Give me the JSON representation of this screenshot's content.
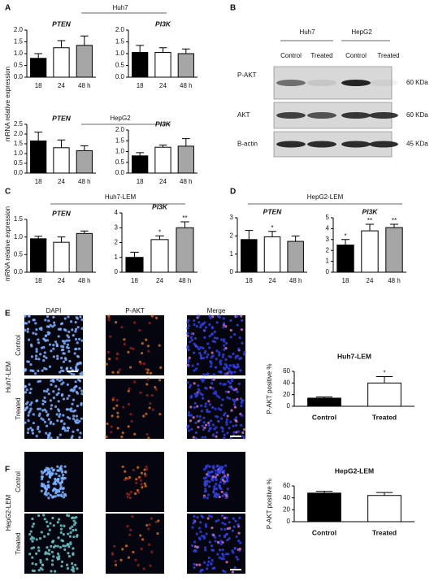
{
  "panel_labels": [
    "A",
    "B",
    "C",
    "D",
    "E",
    "F"
  ],
  "group_labels": [
    "Huh7",
    "HepG2",
    "Huh7-LEM",
    "HepG2-LEM"
  ],
  "ylabel": "mRNA relative expression",
  "blot": {
    "cell_lines": [
      "Huh7",
      "HepG2"
    ],
    "conditions": [
      "Control",
      "Treated",
      "Control",
      "Treated"
    ],
    "rows": [
      {
        "name": "P-AKT",
        "size": "60 KDa"
      },
      {
        "name": "AKT",
        "size": "60 KDa"
      },
      {
        "name": "B-actin",
        "size": "45 KDa"
      }
    ]
  },
  "imaging": {
    "columns": [
      "DAPI",
      "P-AKT",
      "Merge"
    ],
    "panels": [
      {
        "cell_line": "Huh7-LEM",
        "rows": [
          "Control",
          "Treated"
        ]
      },
      {
        "cell_line": "HepG2-LEM",
        "rows": [
          "Control",
          "Treated"
        ]
      }
    ]
  },
  "chart_data": [
    {
      "type": "bar",
      "title": "PTEN",
      "categories": [
        "18",
        "24",
        "48 h"
      ],
      "values": [
        0.8,
        1.25,
        1.35
      ],
      "errors": [
        0.2,
        0.3,
        0.4
      ],
      "colors": [
        "#000000",
        "#ffffff",
        "#a6a6a6"
      ],
      "annotations": [
        null,
        null,
        null
      ],
      "ylim": [
        0,
        2
      ],
      "yticks": [
        {
          "value": 0,
          "label": "0.0"
        },
        {
          "value": 0.5,
          "label": "0.5"
        },
        {
          "value": 1,
          "label": "1.0"
        },
        {
          "value": 1.5,
          "label": "1.5"
        },
        {
          "value": 2,
          "label": "2.0"
        }
      ]
    },
    {
      "type": "bar",
      "title": "PI3K",
      "categories": [
        "18",
        "24",
        "48 h"
      ],
      "values": [
        1.05,
        1.05,
        1.0
      ],
      "errors": [
        0.3,
        0.2,
        0.2
      ],
      "colors": [
        "#000000",
        "#ffffff",
        "#a6a6a6"
      ],
      "annotations": [
        null,
        null,
        null
      ],
      "ylim": [
        0,
        2
      ],
      "yticks": [
        {
          "value": 0,
          "label": "0.0"
        },
        {
          "value": 0.5,
          "label": "0.5"
        },
        {
          "value": 1,
          "label": "1.0"
        },
        {
          "value": 1.5,
          "label": "1.5"
        },
        {
          "value": 2,
          "label": "2.0"
        }
      ]
    },
    {
      "type": "bar",
      "title": "PTEN",
      "categories": [
        "18",
        "24",
        "48 h"
      ],
      "values": [
        1.65,
        1.3,
        1.15
      ],
      "errors": [
        0.45,
        0.4,
        0.25
      ],
      "colors": [
        "#000000",
        "#ffffff",
        "#a6a6a6"
      ],
      "annotations": [
        null,
        null,
        null
      ],
      "ylim": [
        0,
        2.5
      ],
      "yticks": [
        {
          "value": 0,
          "label": "0.0"
        },
        {
          "value": 0.5,
          "label": "0.5"
        },
        {
          "value": 1,
          "label": "1.0"
        },
        {
          "value": 1.5,
          "label": "1.5"
        },
        {
          "value": 2,
          "label": "2.0"
        },
        {
          "value": 2.5,
          "label": "2.5"
        }
      ]
    },
    {
      "type": "bar",
      "title": "PI3K",
      "categories": [
        "18",
        "24",
        "48 h"
      ],
      "values": [
        0.8,
        1.2,
        1.25
      ],
      "errors": [
        0.15,
        0.1,
        0.35
      ],
      "colors": [
        "#000000",
        "#ffffff",
        "#a6a6a6"
      ],
      "annotations": [
        null,
        null,
        null
      ],
      "ylim": [
        0,
        2
      ],
      "yticks": [
        {
          "value": 0,
          "label": "0.0"
        },
        {
          "value": 0.5,
          "label": "0.5"
        },
        {
          "value": 1,
          "label": "1.0"
        },
        {
          "value": 1.5,
          "label": "1.5"
        },
        {
          "value": 2,
          "label": "2.0"
        }
      ]
    },
    {
      "type": "bar",
      "title": "PTEN",
      "categories": [
        "18",
        "24",
        "48 h"
      ],
      "values": [
        0.95,
        0.85,
        1.1
      ],
      "errors": [
        0.07,
        0.15,
        0.07
      ],
      "colors": [
        "#000000",
        "#ffffff",
        "#a6a6a6"
      ],
      "annotations": [
        null,
        null,
        null
      ],
      "ylim": [
        0,
        1.5
      ],
      "yticks": [
        {
          "value": 0,
          "label": "0.0"
        },
        {
          "value": 0.5,
          "label": "0.5"
        },
        {
          "value": 1,
          "label": "1.0"
        },
        {
          "value": 1.5,
          "label": "1.5"
        }
      ]
    },
    {
      "type": "bar",
      "title": "PI3K",
      "categories": [
        "18",
        "24",
        "48 h"
      ],
      "values": [
        1.0,
        2.2,
        3.0
      ],
      "errors": [
        0.35,
        0.25,
        0.4
      ],
      "colors": [
        "#000000",
        "#ffffff",
        "#a6a6a6"
      ],
      "annotations": [
        null,
        "*",
        "**"
      ],
      "ylim": [
        0,
        4
      ],
      "yticks": [
        0,
        1,
        2,
        3,
        4
      ]
    },
    {
      "type": "bar",
      "title": "PTEN",
      "categories": [
        "18",
        "24",
        "48 h"
      ],
      "values": [
        1.8,
        1.95,
        1.7
      ],
      "errors": [
        0.5,
        0.3,
        0.3
      ],
      "colors": [
        "#000000",
        "#ffffff",
        "#a6a6a6"
      ],
      "annotations": [
        null,
        "*",
        null
      ],
      "ylim": [
        0,
        3
      ],
      "yticks": [
        0,
        1,
        2,
        3
      ]
    },
    {
      "type": "bar",
      "title": "PI3K",
      "categories": [
        "18",
        "24",
        "48 h"
      ],
      "values": [
        2.5,
        3.8,
        4.1
      ],
      "errors": [
        0.5,
        0.6,
        0.3
      ],
      "colors": [
        "#000000",
        "#ffffff",
        "#a6a6a6"
      ],
      "annotations": [
        "*",
        "**",
        "**"
      ],
      "ylim": [
        0,
        5
      ],
      "yticks": [
        0,
        1,
        2,
        3,
        4,
        5
      ]
    },
    {
      "type": "bar",
      "title": "Huh7-LEM",
      "ylabel": "P-AKT positive %",
      "categories": [
        "Control",
        "Treated"
      ],
      "values": [
        14,
        40
      ],
      "errors": [
        2,
        11
      ],
      "colors": [
        "#000000",
        "#ffffff"
      ],
      "annotations": [
        null,
        "*"
      ],
      "ylim": [
        0,
        60
      ],
      "yticks": [
        0,
        20,
        40,
        60
      ]
    },
    {
      "type": "bar",
      "title": "HepG2-LEM",
      "ylabel": "P-AKT positive %",
      "categories": [
        "Control",
        "Treated"
      ],
      "values": [
        48,
        44
      ],
      "errors": [
        3,
        5
      ],
      "colors": [
        "#000000",
        "#ffffff"
      ],
      "annotations": [
        null,
        null
      ],
      "ylim": [
        0,
        60
      ],
      "yticks": [
        0,
        20,
        40,
        60
      ]
    }
  ]
}
